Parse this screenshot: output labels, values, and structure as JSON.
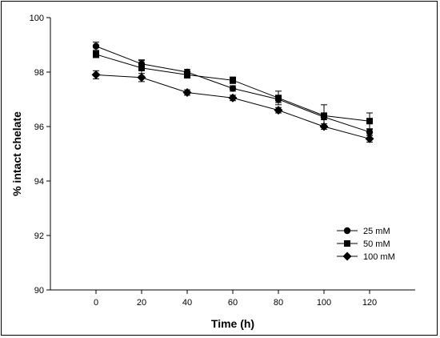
{
  "chart_data": {
    "type": "line",
    "title": "",
    "xlabel": "Time (h)",
    "ylabel": "% intact chelate",
    "xlim": [
      -20,
      140
    ],
    "ylim": [
      90,
      100
    ],
    "x_ticks": [
      0,
      20,
      40,
      60,
      80,
      100,
      120
    ],
    "y_ticks": [
      90,
      92,
      94,
      96,
      98,
      100
    ],
    "x": [
      0,
      20,
      40,
      60,
      80,
      100,
      120
    ],
    "grid": false,
    "legend_position": "bottom-right",
    "series": [
      {
        "name": "25 mM",
        "marker": "circle",
        "values": [
          98.95,
          98.3,
          98.0,
          97.4,
          97.0,
          96.35,
          95.8
        ],
        "errors": [
          0.15,
          0.12,
          0.1,
          0.1,
          0.12,
          0.1,
          0.12
        ]
      },
      {
        "name": "50 mM",
        "marker": "square",
        "values": [
          98.65,
          98.15,
          97.9,
          97.7,
          97.05,
          96.4,
          96.2
        ],
        "errors": [
          0.12,
          0.3,
          0.12,
          0.12,
          0.25,
          0.4,
          0.3
        ]
      },
      {
        "name": "100 mM",
        "marker": "diamond",
        "values": [
          97.9,
          97.8,
          97.25,
          97.05,
          96.6,
          96.0,
          95.55
        ],
        "errors": [
          0.15,
          0.15,
          0.1,
          0.1,
          0.1,
          0.1,
          0.12
        ]
      }
    ]
  }
}
